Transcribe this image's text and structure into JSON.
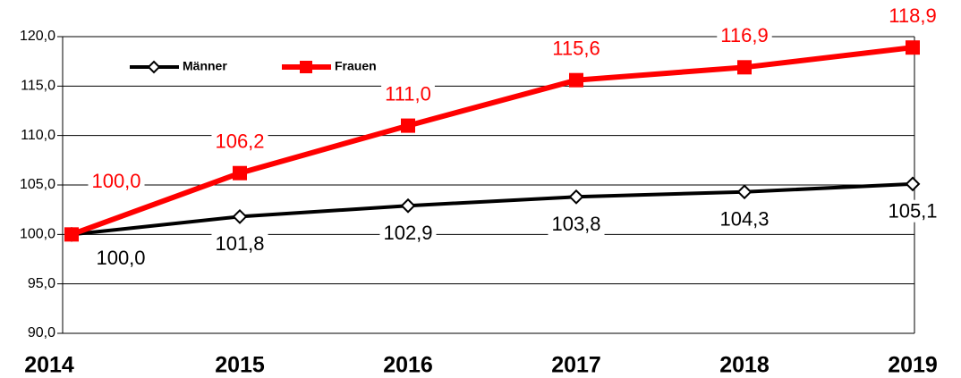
{
  "chart_data": {
    "type": "line",
    "categories": [
      "2014",
      "2015",
      "2016",
      "2017",
      "2018",
      "2019"
    ],
    "series": [
      {
        "name": "Männer",
        "color": "#000000",
        "values": [
          100.0,
          101.8,
          102.9,
          103.8,
          104.3,
          105.1
        ],
        "value_labels": [
          "100,0",
          "101,8",
          "102,9",
          "103,8",
          "104,3",
          "105,1"
        ]
      },
      {
        "name": "Frauen",
        "color": "#ff0000",
        "values": [
          100.0,
          106.2,
          111.0,
          115.6,
          116.9,
          118.9
        ],
        "value_labels": [
          "100,0",
          "106,2",
          "111,0",
          "115,6",
          "116,9",
          "118,9"
        ]
      }
    ],
    "ylim": [
      90,
      120
    ],
    "yticks": [
      {
        "value": 90,
        "label": "90,0"
      },
      {
        "value": 95,
        "label": "95,0"
      },
      {
        "value": 100,
        "label": "100,0"
      },
      {
        "value": 105,
        "label": "105,0"
      },
      {
        "value": 110,
        "label": "110,0"
      },
      {
        "value": 115,
        "label": "115,0"
      },
      {
        "value": 120,
        "label": "120,0"
      }
    ],
    "grid": true
  }
}
